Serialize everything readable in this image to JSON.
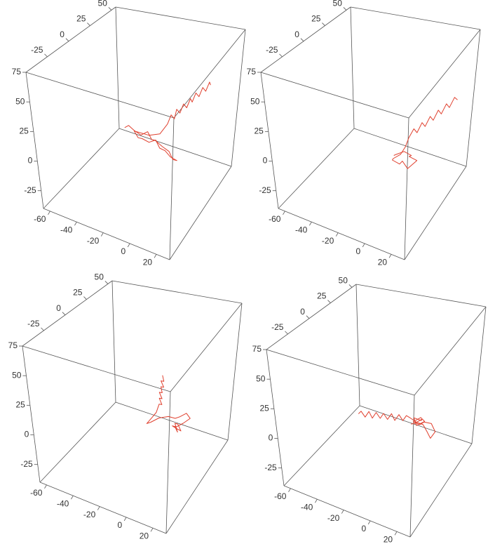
{
  "chart_data": [
    {
      "type": "line3d",
      "color": "#e0402e",
      "xlim": [
        -65,
        30
      ],
      "ylim": [
        -50,
        55
      ],
      "zlim": [
        -40,
        75
      ],
      "xticks": [
        -60,
        -40,
        -20,
        0,
        20
      ],
      "yticks": [
        -25,
        0,
        25,
        50
      ],
      "zticks": [
        -25,
        0,
        25,
        50,
        75
      ],
      "x": [
        -28,
        -25,
        -20,
        -16,
        -12,
        -8,
        -4,
        0,
        4,
        8,
        12,
        8,
        3,
        -2,
        -6,
        -10,
        -14,
        -18,
        -22,
        -10,
        -2,
        1,
        2,
        3,
        3,
        4,
        5,
        6,
        7,
        7,
        8,
        9,
        10,
        11,
        12,
        12
      ],
      "y": [
        0,
        0,
        -2,
        0,
        2,
        0,
        -3,
        0,
        2,
        0,
        -2,
        -4,
        -2,
        0,
        2,
        0,
        -2,
        0,
        2,
        0,
        0,
        5,
        8,
        11,
        14,
        17,
        20,
        23,
        26,
        29,
        32,
        35,
        38,
        41,
        44,
        46
      ],
      "z": [
        12,
        15,
        14,
        10,
        13,
        9,
        12,
        6,
        2,
        -2,
        0,
        3,
        5,
        4,
        8,
        6,
        9,
        7,
        10,
        12,
        16,
        22,
        28,
        23,
        29,
        24,
        30,
        25,
        31,
        26,
        32,
        27,
        33,
        28,
        34,
        30
      ]
    },
    {
      "type": "line3d",
      "color": "#e0402e",
      "xlim": [
        -65,
        30
      ],
      "ylim": [
        -50,
        55
      ],
      "zlim": [
        -40,
        75
      ],
      "xticks": [
        -60,
        -40,
        -20,
        0,
        20
      ],
      "yticks": [
        -25,
        0,
        25,
        50
      ],
      "zticks": [
        -25,
        0,
        25,
        50,
        75
      ],
      "x": [
        0,
        3,
        8,
        12,
        9,
        14,
        10,
        5,
        2,
        -2,
        0,
        4,
        6,
        7,
        9,
        10,
        12,
        13,
        15,
        16,
        18,
        19,
        21,
        22,
        24,
        25
      ],
      "y": [
        -5,
        -8,
        -6,
        -3,
        0,
        2,
        -4,
        -2,
        0,
        -3,
        -6,
        -3,
        0,
        3,
        6,
        9,
        12,
        15,
        18,
        21,
        24,
        27,
        30,
        33,
        36,
        39
      ],
      "z": [
        2,
        6,
        9,
        5,
        1,
        -2,
        -6,
        -3,
        -8,
        -4,
        0,
        3,
        8,
        14,
        20,
        15,
        22,
        17,
        24,
        19,
        26,
        21,
        28,
        23,
        30,
        26
      ]
    },
    {
      "type": "line3d",
      "color": "#e0402e",
      "xlim": [
        -65,
        30
      ],
      "ylim": [
        -50,
        55
      ],
      "zlim": [
        -40,
        75
      ],
      "xticks": [
        -60,
        -40,
        -20,
        0,
        20
      ],
      "yticks": [
        -25,
        0,
        25,
        50
      ],
      "zticks": [
        -25,
        0,
        25,
        50,
        75
      ],
      "x": [
        12,
        15,
        11,
        14,
        17,
        13,
        10,
        14,
        18,
        22,
        20,
        16,
        12,
        6,
        0,
        -5,
        -9,
        -6,
        -2,
        -1,
        -1,
        2,
        -1,
        2,
        -1,
        2,
        0,
        3,
        0,
        3,
        1
      ],
      "y": [
        0,
        -2,
        2,
        0,
        -1,
        2,
        0,
        -2,
        0,
        2,
        0,
        -2,
        0,
        2,
        0,
        -2,
        0,
        2,
        0,
        0,
        2,
        0,
        2,
        0,
        2,
        0,
        2,
        0,
        2,
        0,
        2
      ],
      "z": [
        5,
        3,
        6,
        8,
        4,
        2,
        5,
        7,
        10,
        14,
        19,
        16,
        12,
        10,
        8,
        4,
        0,
        5,
        12,
        16,
        18,
        20,
        23,
        25,
        28,
        30,
        33,
        35,
        38,
        40,
        43
      ]
    },
    {
      "type": "line3d",
      "color": "#e0402e",
      "xlim": [
        -65,
        30
      ],
      "ylim": [
        -50,
        55
      ],
      "zlim": [
        -40,
        75
      ],
      "xticks": [
        -60,
        -40,
        -20,
        0,
        20
      ],
      "yticks": [
        -25,
        0,
        25,
        50
      ],
      "zticks": [
        -25,
        0,
        25,
        50,
        75
      ],
      "x": [
        6,
        10,
        14,
        12,
        8,
        11,
        15,
        13,
        9,
        12,
        16,
        20,
        24,
        22,
        18,
        14,
        10,
        5,
        2,
        -1,
        -4,
        -7,
        -10,
        -13,
        -16,
        -19,
        -22,
        -25,
        -28,
        -31,
        -34,
        -36
      ],
      "y": [
        0,
        -3,
        0,
        3,
        0,
        -2,
        2,
        0,
        -3,
        1,
        -1,
        2,
        0,
        -3,
        0,
        2,
        0,
        1,
        1,
        2,
        2,
        2,
        3,
        3,
        3,
        4,
        4,
        4,
        5,
        5,
        5,
        5
      ],
      "z": [
        8,
        12,
        15,
        11,
        14,
        10,
        12,
        16,
        13,
        9,
        14,
        12,
        8,
        4,
        6,
        9,
        11,
        12,
        13,
        7,
        11,
        5,
        9,
        3,
        7,
        1,
        5,
        -1,
        3,
        -3,
        1,
        -2
      ]
    }
  ]
}
